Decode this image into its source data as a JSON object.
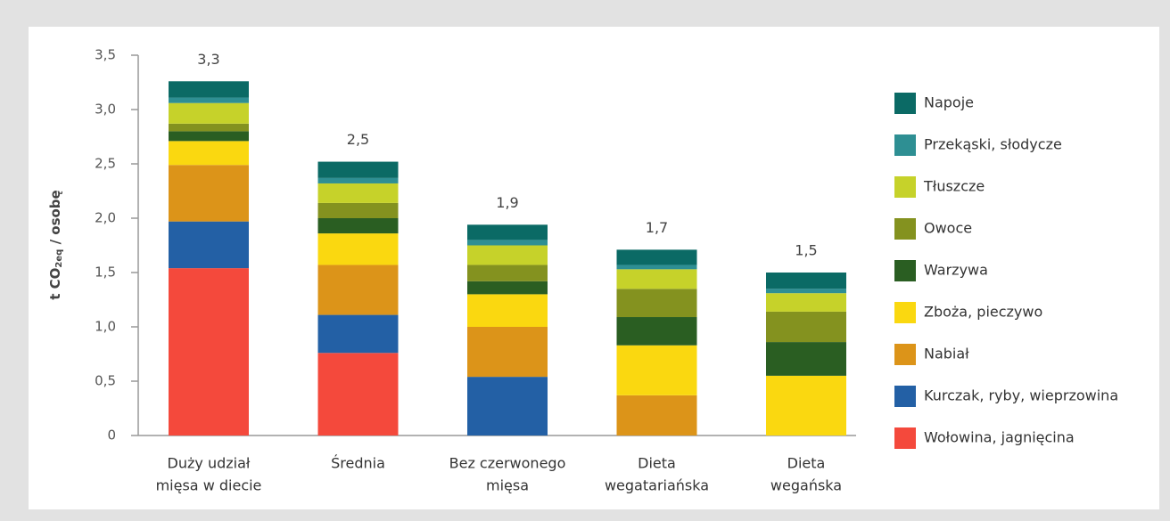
{
  "chart_data": {
    "type": "stacked_bar",
    "y_label": [
      "t CO",
      "2eq",
      " / osobę"
    ],
    "categories": [
      [
        "Duży udział",
        "mięsa w diecie"
      ],
      [
        "Średnia"
      ],
      [
        "Bez czerwonego",
        "mięsa"
      ],
      [
        "Dieta",
        "wegatariańska"
      ],
      [
        "Dieta",
        "wegańska"
      ]
    ],
    "series": [
      {
        "name": "Wołowina, jagnięcina",
        "color": "#f4493c",
        "values": [
          1.54,
          0.76,
          0,
          0,
          0
        ]
      },
      {
        "name": "Kurczak, ryby, wieprzowina",
        "color": "#2360a5",
        "values": [
          0.43,
          0.35,
          0.54,
          0,
          0
        ]
      },
      {
        "name": "Nabiał",
        "color": "#dc9419",
        "values": [
          0.52,
          0.46,
          0.46,
          0.37,
          0
        ]
      },
      {
        "name": "Zboża, pieczywo",
        "color": "#fad810",
        "values": [
          0.22,
          0.29,
          0.3,
          0.46,
          0.55
        ]
      },
      {
        "name": "Warzywa",
        "color": "#2a5e22",
        "values": [
          0.09,
          0.14,
          0.12,
          0.26,
          0.31
        ]
      },
      {
        "name": "Owoce",
        "color": "#84921f",
        "values": [
          0.07,
          0.14,
          0.15,
          0.26,
          0.28
        ]
      },
      {
        "name": "Tłuszcze",
        "color": "#c6d22a",
        "values": [
          0.19,
          0.18,
          0.18,
          0.18,
          0.17
        ]
      },
      {
        "name": "Przekąski, słodycze",
        "color": "#2e8f93",
        "values": [
          0.05,
          0.05,
          0.05,
          0.04,
          0.04
        ]
      },
      {
        "name": "Napoje",
        "color": "#0b6a65",
        "values": [
          0.15,
          0.15,
          0.14,
          0.14,
          0.15
        ]
      }
    ],
    "totals": {
      "values": [
        3.3,
        2.5,
        1.9,
        1.7,
        1.5
      ],
      "value_labels": [
        "3,3",
        "2,5",
        "1,9",
        "1,7",
        "1,5"
      ]
    },
    "ylim": [
      0,
      3.5
    ],
    "yticks": [
      0,
      {
        "value": 0.5,
        "label": "0,5"
      },
      {
        "value": 1,
        "label": "1,0"
      },
      {
        "value": 1.5,
        "label": "1,5"
      },
      {
        "value": 2,
        "label": "2,0"
      },
      {
        "value": 2.5,
        "label": "2,5"
      },
      {
        "value": 3,
        "label": "3,0"
      },
      {
        "value": 3.5,
        "label": "3,5"
      }
    ],
    "legend": "right"
  }
}
